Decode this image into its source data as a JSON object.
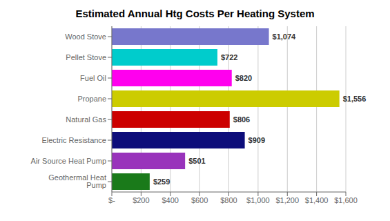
{
  "chart_data": {
    "type": "bar",
    "title": "Estimated Annual Htg Costs Per Heating System",
    "orientation": "horizontal",
    "categories": [
      "Geothermal Heat Pump",
      "Air Source Heat Pump",
      "Electric Resistance",
      "Natural Gas",
      "Propane",
      "Fuel Oil",
      "Pellet Stove",
      "Wood Stove"
    ],
    "values": [
      259,
      501,
      909,
      806,
      1556,
      820,
      722,
      1074
    ],
    "value_labels": [
      "$259",
      "$501",
      "$909",
      "$806",
      "$1,556",
      "$820",
      "$722",
      "$1,074"
    ],
    "data_labels": true,
    "colors": [
      "#1a7a1a",
      "#9933bb",
      "#0d0d7a",
      "#cc0000",
      "#cccc00",
      "#ff00ee",
      "#00cccc",
      "#7777cc"
    ],
    "xlim": [
      0,
      1600
    ],
    "xticks": [
      {
        "value": 0,
        "label": "$-"
      },
      {
        "value": 200,
        "label": "$200"
      },
      {
        "value": 400,
        "label": "$400"
      },
      {
        "value": 600,
        "label": "$600"
      },
      {
        "value": 800,
        "label": "$800"
      },
      {
        "value": 1000,
        "label": "$1,000"
      },
      {
        "value": 1200,
        "label": "$1,200"
      },
      {
        "value": 1400,
        "label": "$1,400"
      },
      {
        "value": 1600,
        "label": "$1,600"
      }
    ],
    "grid": true
  }
}
